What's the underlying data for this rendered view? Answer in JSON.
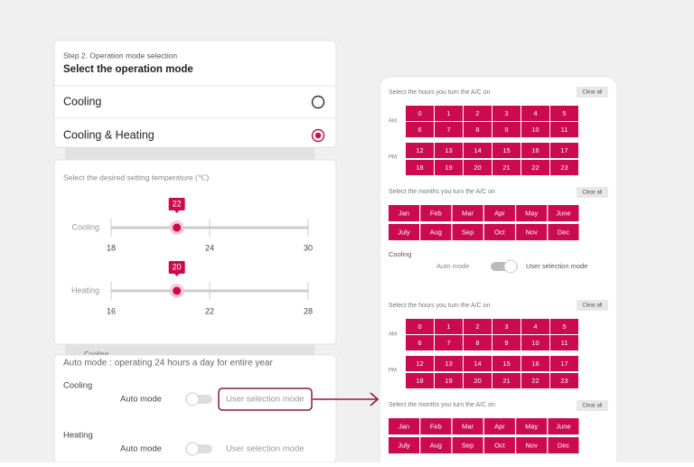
{
  "left": {
    "mode_card": {
      "step": "Step 2. Operation mode selection",
      "title": "Select the operation mode",
      "options": [
        {
          "label": "Cooling",
          "selected": false
        },
        {
          "label": "Cooling & Heating",
          "selected": true
        }
      ]
    },
    "background_label": "Cooling",
    "temperature_card": {
      "title": "Select the desired setting temperature (℃)",
      "sliders": [
        {
          "label": "Cooling",
          "value": 22,
          "ticks": [
            18,
            24,
            30
          ]
        },
        {
          "label": "Heating",
          "value": 20,
          "ticks": [
            16,
            22,
            28
          ]
        }
      ]
    },
    "auto_card": {
      "title": "Auto mode : operating 24 hours a day for entire year",
      "rows": [
        {
          "label": "Cooling",
          "auto_label": "Auto mode",
          "user_label": "User selection mode",
          "highlighted": true
        },
        {
          "label": "Heating",
          "auto_label": "Auto mode",
          "user_label": "User selection mode",
          "highlighted": false
        }
      ]
    }
  },
  "right": {
    "panels": [
      {
        "hours_title": "Select the hours you turn the A/C on",
        "clear_label": "Clear all",
        "am_label": "AM",
        "pm_label": "PM",
        "hours": [
          0,
          1,
          2,
          3,
          4,
          5,
          6,
          7,
          8,
          9,
          10,
          11,
          12,
          13,
          14,
          15,
          16,
          17,
          18,
          19,
          20,
          21,
          22,
          23
        ],
        "months_title": "Select the months you turn the A/C on",
        "months_clear_label": "Clear all",
        "months": [
          "Jan",
          "Feb",
          "Mar",
          "Apr",
          "May",
          "June",
          "July",
          "Aug",
          "Sep",
          "Oct",
          "Nov",
          "Dec"
        ],
        "mode": {
          "label": "Cooling",
          "auto_label": "Auto mode",
          "user_label": "User selection mode"
        }
      },
      {
        "hours_title": "Select the hours you turn the A/C on",
        "clear_label": "Clear all",
        "am_label": "AM",
        "pm_label": "PM",
        "hours": [
          0,
          1,
          2,
          3,
          4,
          5,
          6,
          7,
          8,
          9,
          10,
          11,
          12,
          13,
          14,
          15,
          16,
          17,
          18,
          19,
          20,
          21,
          22,
          23
        ],
        "months_title": "Select the months you turn the A/C on",
        "months_clear_label": "Clear all",
        "months": [
          "Jan",
          "Feb",
          "Mar",
          "Apr",
          "May",
          "June",
          "July",
          "Aug",
          "Sep",
          "Oct",
          "Nov",
          "Dec"
        ]
      }
    ]
  }
}
